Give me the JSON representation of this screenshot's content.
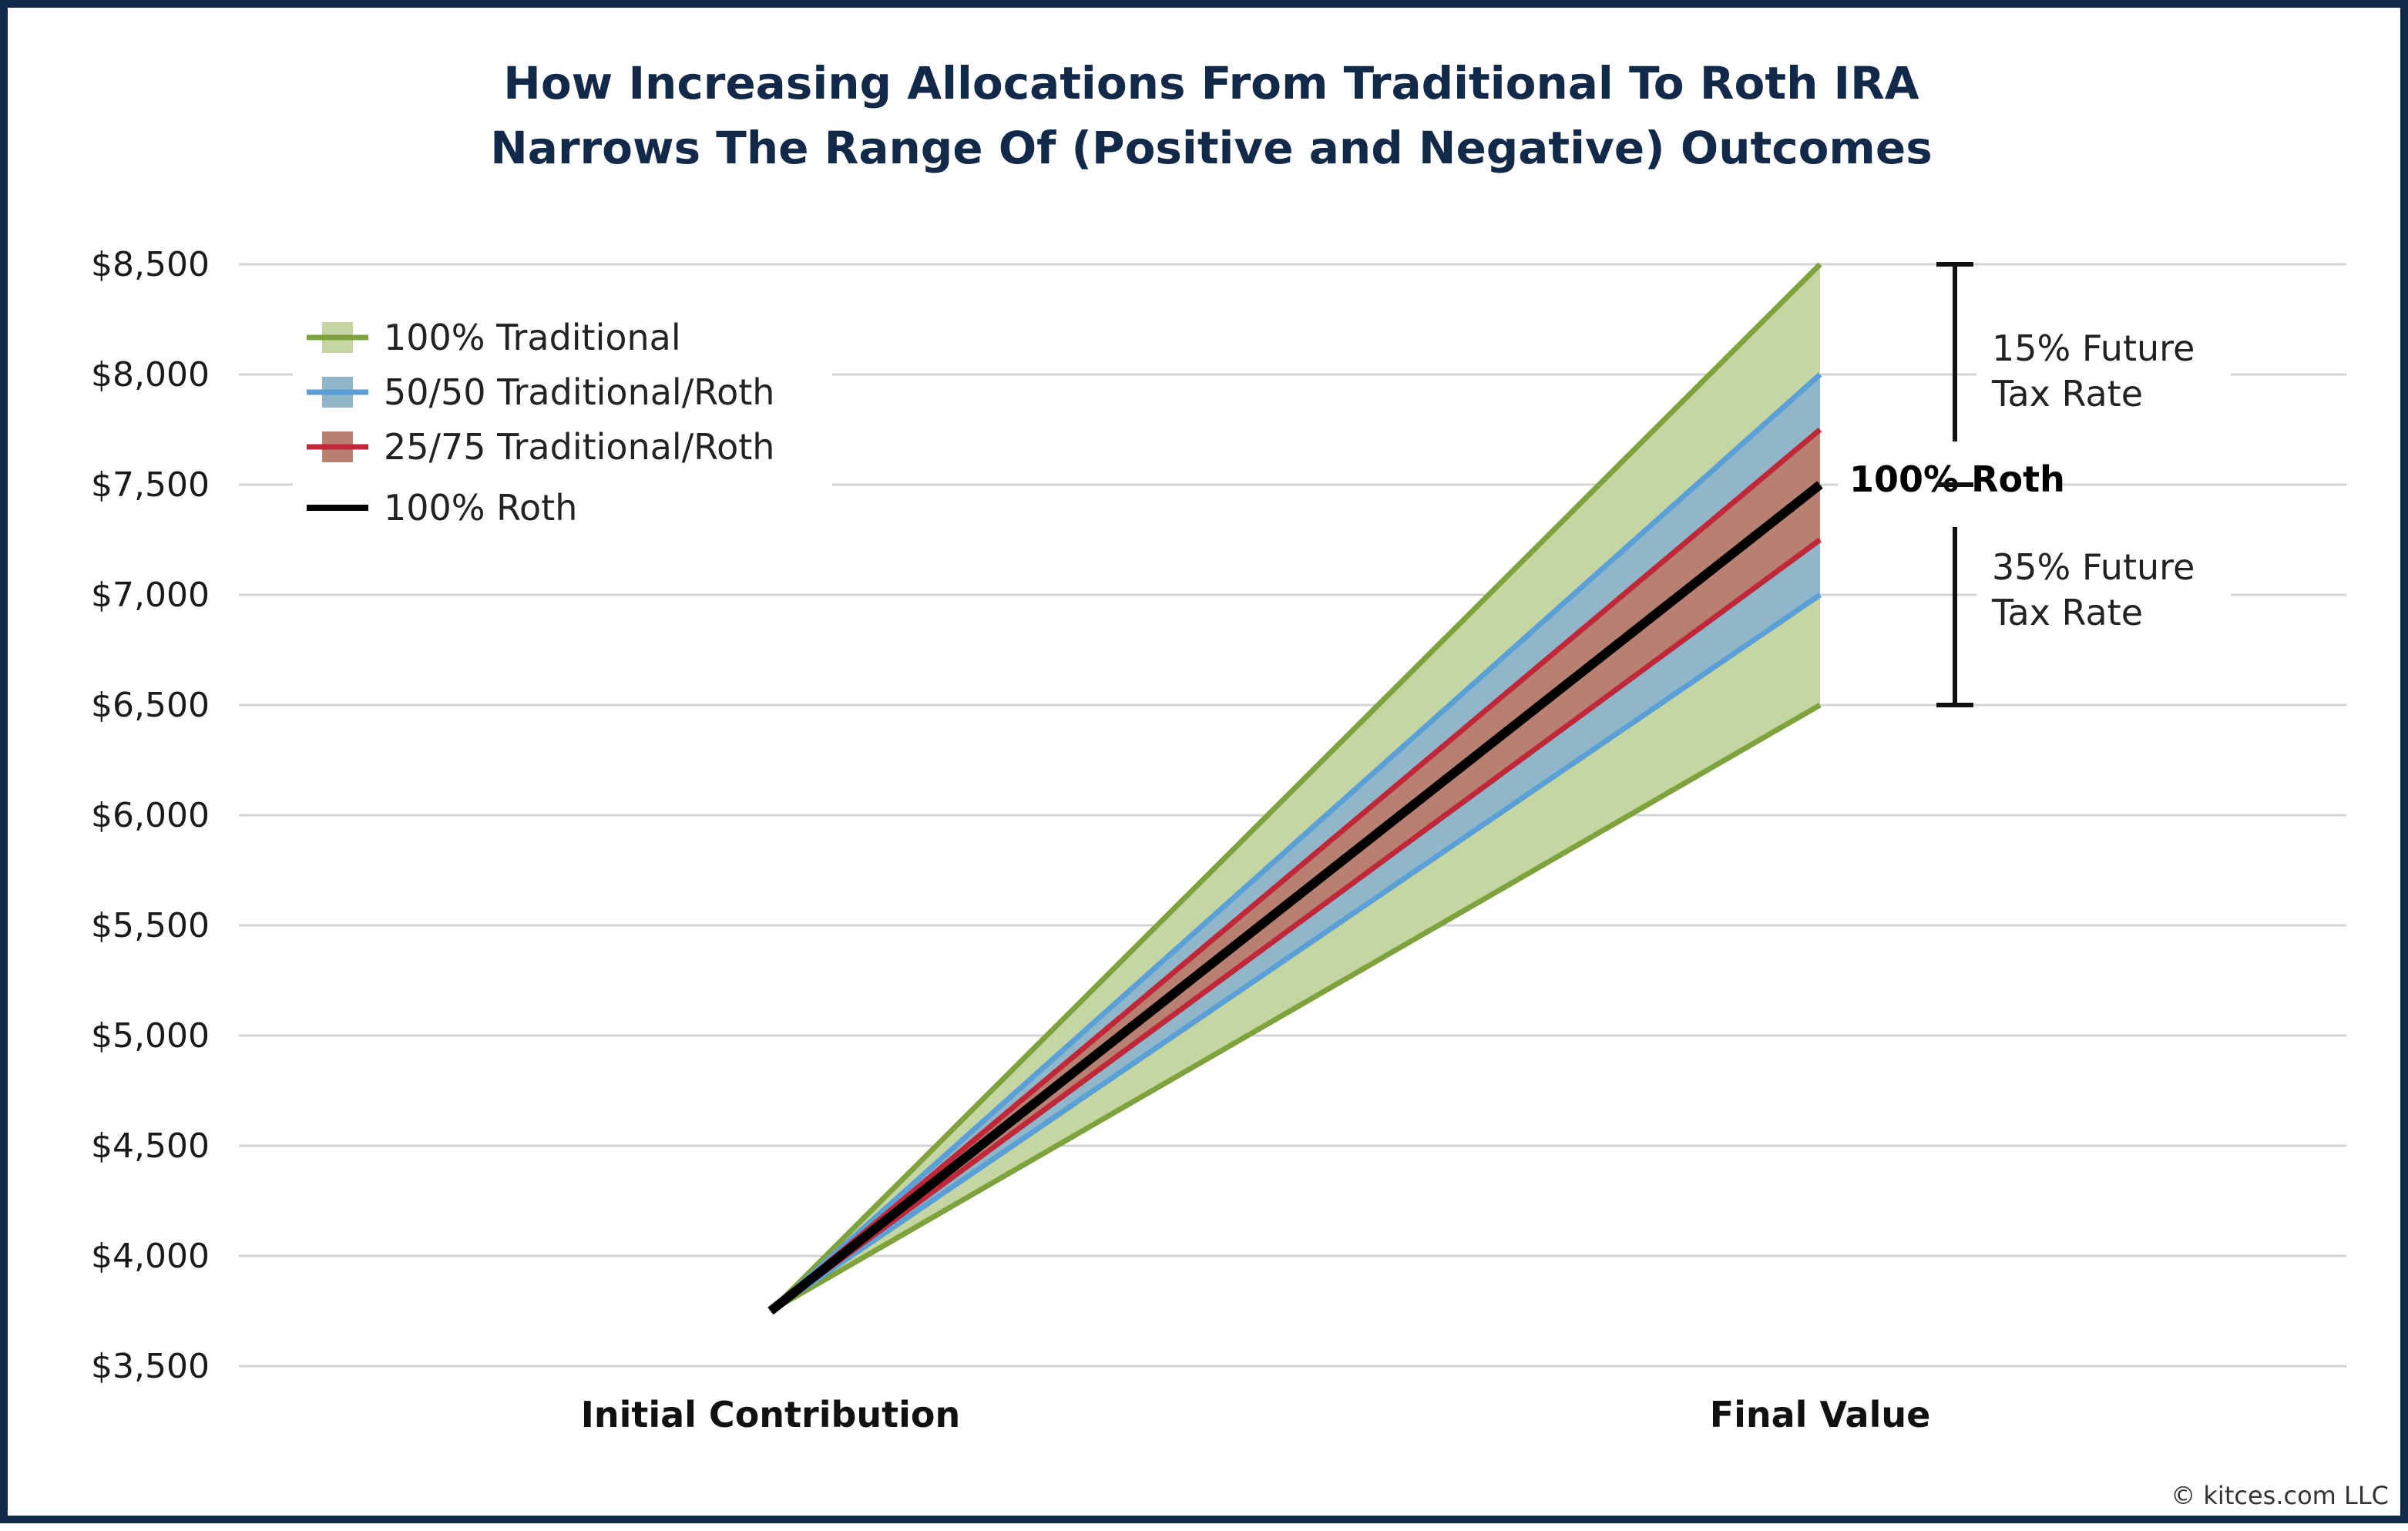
{
  "chart_data": {
    "type": "area",
    "title_line1": "How Increasing Allocations From Traditional To Roth IRA",
    "title_line2": "Narrows The Range Of (Positive and Negative) Outcomes",
    "categories": [
      "Initial Contribution",
      "Final Value"
    ],
    "ylim": [
      3500,
      8500
    ],
    "yticks": [
      3500,
      4000,
      4500,
      5000,
      5500,
      6000,
      6500,
      7000,
      7500,
      8000,
      8500
    ],
    "ytick_labels": [
      "$3,500",
      "$4,000",
      "$4,500",
      "$5,000",
      "$5,500",
      "$6,000",
      "$6,500",
      "$7,000",
      "$7,500",
      "$8,000",
      "$8,500"
    ],
    "grid": true,
    "legend_position": "top-left",
    "series": [
      {
        "name": "100% Traditional",
        "color": "#7fa33c",
        "fill": "#c6d6a3",
        "low": [
          3750,
          6500
        ],
        "high": [
          3750,
          8500
        ]
      },
      {
        "name": "50/50 Traditional/Roth",
        "color": "#5aa0d6",
        "fill": "#8fb6c9",
        "low": [
          3750,
          7000
        ],
        "high": [
          3750,
          8000
        ]
      },
      {
        "name": "25/75 Traditional/Roth",
        "color": "#c0283a",
        "fill": "#b88070",
        "low": [
          3750,
          7250
        ],
        "high": [
          3750,
          7750
        ]
      },
      {
        "name": "100% Roth",
        "color": "#000000",
        "values": [
          3750,
          7500
        ]
      }
    ],
    "annotations": {
      "upper_line1": "15% Future",
      "upper_line2": "Tax Rate",
      "lower_line1": "35% Future",
      "lower_line2": "Tax Rate",
      "roth_label": "100% Roth",
      "upper_range": [
        7500,
        8500
      ],
      "lower_range": [
        6500,
        7500
      ]
    },
    "credit": "© kitces.com LLC"
  }
}
